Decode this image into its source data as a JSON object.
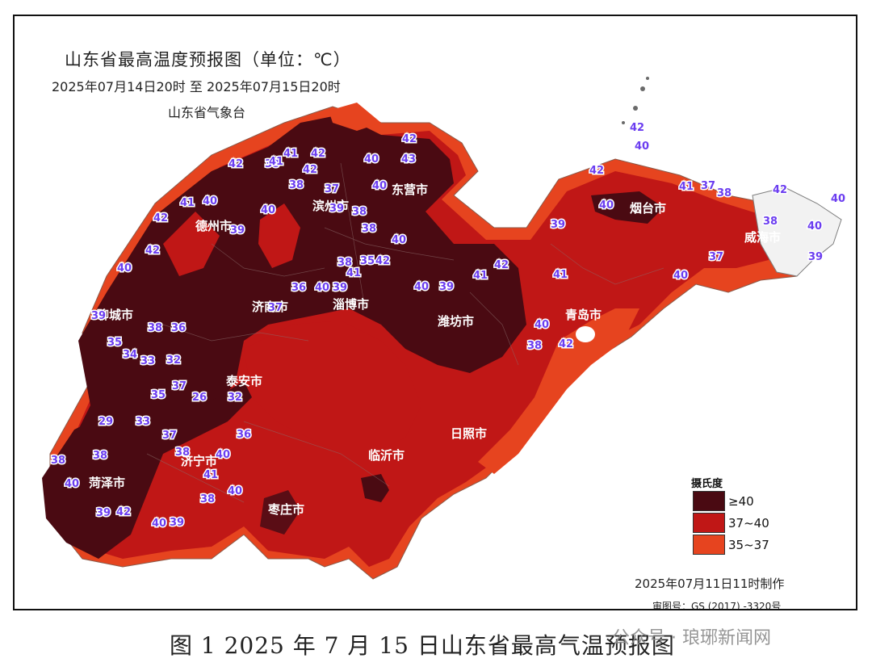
{
  "map": {
    "title": "山东省最高温度预报图（单位：℃）",
    "period": "2025年07月14日20时  至  2025年07月15日20时",
    "agency": "山东省气象台",
    "colors": {
      "ge40": "#4a0a12",
      "r37_40": "#c01716",
      "r35_37": "#e6441f",
      "land_other": "#f2f2f2",
      "sea": "#ffffff",
      "border": "#7d7d7d"
    },
    "cities": [
      "聊城市",
      "德州市",
      "滨州市",
      "东营市",
      "烟台市",
      "威海市",
      "济南市",
      "淄博市",
      "潍坊市",
      "青岛市",
      "泰安市",
      "日照市",
      "济宁市",
      "临沂市",
      "菏泽市",
      "枣庄市"
    ],
    "temps": [
      "42",
      "41",
      "42",
      "40",
      "42",
      "38",
      "42",
      "43",
      "41",
      "40",
      "39",
      "38",
      "37",
      "38",
      "40",
      "39",
      "40",
      "41",
      "42",
      "42",
      "40",
      "39",
      "38",
      "36",
      "35",
      "34",
      "33",
      "32",
      "37",
      "35",
      "26",
      "32",
      "29",
      "33",
      "37",
      "38",
      "36",
      "40",
      "41",
      "40",
      "38",
      "39",
      "40",
      "42",
      "38",
      "38",
      "40",
      "39",
      "37",
      "36",
      "40",
      "38",
      "35",
      "40",
      "42",
      "41",
      "39",
      "38",
      "40",
      "39",
      "41",
      "42",
      "40",
      "38",
      "42",
      "41",
      "39",
      "40",
      "42",
      "42",
      "40",
      "41",
      "37",
      "38",
      "42",
      "40",
      "40",
      "39",
      "38",
      "37",
      "40"
    ]
  },
  "legend": {
    "title": "摄氏度",
    "items": [
      {
        "label": "≥40",
        "color": "#4a0a12"
      },
      {
        "label": "37~40",
        "color": "#c01716"
      },
      {
        "label": "35~37",
        "color": "#e6441f"
      }
    ]
  },
  "footer": {
    "made": "2025年07月11日11时制作",
    "review": "审图号：GS (2017) -3320号"
  },
  "caption": "图 1   2025 年 7 月 15 日山东省最高气温预报图",
  "watermark": "公众号 · 琅琊新闻网"
}
